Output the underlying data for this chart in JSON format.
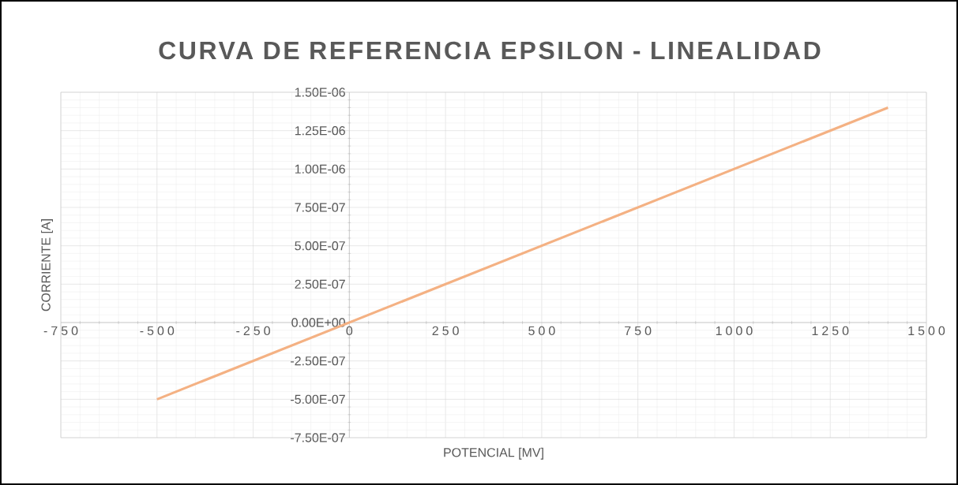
{
  "chart_data": {
    "type": "line",
    "title": "CURVA DE REFERENCIA EPSILON - LINEALIDAD",
    "xlabel": "POTENCIAL [MV]",
    "ylabel": "CORRIENTE [A]",
    "series": [
      {
        "color": "#f4b183",
        "x": [
          -500,
          1400
        ],
        "values": [
          -5e-07,
          1.4e-06
        ]
      }
    ],
    "xlim": [
      -750,
      1500
    ],
    "xticks": [
      -750,
      -500,
      -250,
      0,
      250,
      500,
      750,
      1000,
      1250,
      1500
    ],
    "ylim": [
      -7.5e-07,
      1.5e-06
    ],
    "yticks": [
      {
        "value": -7.5e-07,
        "label": "-7.50E-07"
      },
      {
        "value": -5e-07,
        "label": "-5.00E-07"
      },
      {
        "value": -2.5e-07,
        "label": "-2.50E-07"
      },
      {
        "value": 0,
        "label": "0.00E+00"
      },
      {
        "value": 2.5e-07,
        "label": "2.50E-07"
      },
      {
        "value": 5e-07,
        "label": "5.00E-07"
      },
      {
        "value": 7.5e-07,
        "label": "7.50E-07"
      },
      {
        "value": 1e-06,
        "label": "1.00E-06"
      },
      {
        "value": 1.25e-06,
        "label": "1.25E-06"
      },
      {
        "value": 1.5e-06,
        "label": "1.50E-06"
      }
    ],
    "grid": true,
    "marker": "none",
    "line_style": "solid"
  }
}
